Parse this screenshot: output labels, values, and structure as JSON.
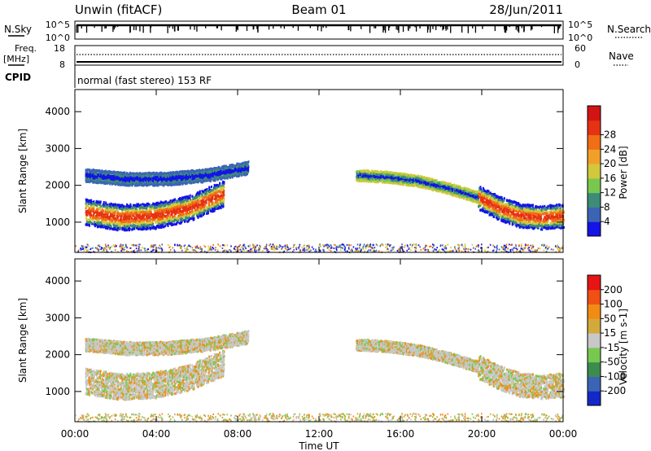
{
  "header": {
    "station": "Unwin (fitACF)",
    "beam": "Beam 01",
    "date": "28/Jun/2011"
  },
  "nsky_panel": {
    "left_label": "N.Sky",
    "left_top_tick": "10^5",
    "left_bottom_tick": "10^0",
    "right_top_tick": "10^5",
    "right_bottom_tick": "10^0",
    "right_label": "N.Search"
  },
  "freq_panel": {
    "left_label_line1": "Freq.",
    "left_label_line2": "[MHz]",
    "left_top_tick": "18",
    "left_bottom_tick": "8",
    "right_top_tick": "60",
    "right_bottom_tick": "0",
    "right_label": "Nave",
    "cpid_label": "CPID",
    "mode_text": "normal (fast stereo) 153 RF"
  },
  "chart_data": [
    {
      "type": "heatmap",
      "name_text": "Power",
      "ylabel": "Slant Range [km]",
      "ylim": [
        180,
        4600
      ],
      "yticks": [
        "1000",
        "2000",
        "3000",
        "4000"
      ],
      "ytick_values": [
        1000,
        2000,
        3000,
        4000
      ],
      "colorbar_label": "Power [dB]",
      "colorbar_ticks": [
        "4",
        "8",
        "12",
        "16",
        "20",
        "24",
        "28"
      ],
      "colorbar_colors": [
        "#1414e6",
        "#3c64b4",
        "#3c8c78",
        "#78c850",
        "#d2c83c",
        "#f0a028",
        "#f06e14",
        "#e63214",
        "#d21414"
      ],
      "bands": [
        {
          "t": [
            0.5,
            7.3
          ],
          "center": [
            1300,
            1150,
            1200,
            1400,
            1800
          ],
          "width": 700,
          "colors": [
            "#e63214",
            "#f06e14",
            "#d2c83c",
            "#3c8c78",
            "#1414e6"
          ]
        },
        {
          "t": [
            0.5,
            8.5
          ],
          "center": [
            2300,
            2200,
            2200,
            2300,
            2500
          ],
          "width": 350,
          "colors": [
            "#1414e6",
            "#3c8c78",
            "#3c64b4"
          ]
        },
        {
          "t": [
            13.8,
            19.8
          ],
          "center": [
            2300,
            2250,
            2150,
            1950,
            1700
          ],
          "width": 300,
          "colors": [
            "#1414e6",
            "#3c8c78",
            "#78c850",
            "#d2c83c"
          ]
        },
        {
          "t": [
            19.8,
            24.0
          ],
          "center": [
            1700,
            1400,
            1200,
            1150,
            1200
          ],
          "width": 650,
          "colors": [
            "#e63214",
            "#f06e14",
            "#d2c83c",
            "#3c8c78",
            "#1414e6"
          ]
        }
      ]
    },
    {
      "type": "heatmap",
      "name_text": "Velocity",
      "ylabel": "Slant Range [km]",
      "ylim": [
        180,
        4600
      ],
      "yticks": [
        "1000",
        "2000",
        "3000",
        "4000"
      ],
      "ytick_values": [
        1000,
        2000,
        3000,
        4000
      ],
      "xlabel": "Time UT",
      "xticks": [
        "00:00",
        "04:00",
        "08:00",
        "12:00",
        "16:00",
        "20:00",
        "00:00"
      ],
      "xtick_values": [
        0,
        4,
        8,
        12,
        16,
        20,
        24
      ],
      "colorbar_label": "Velocity [m s-1]",
      "colorbar_ticks": [
        "200",
        "100",
        "50",
        "15",
        "-15",
        "-50",
        "-100",
        "-200"
      ],
      "colorbar_colors": [
        "#1428c8",
        "#3c64b4",
        "#3c8c50",
        "#78c850",
        "#c8c8c8",
        "#d2aa3c",
        "#f08c14",
        "#f05014",
        "#e61414"
      ]
    }
  ]
}
